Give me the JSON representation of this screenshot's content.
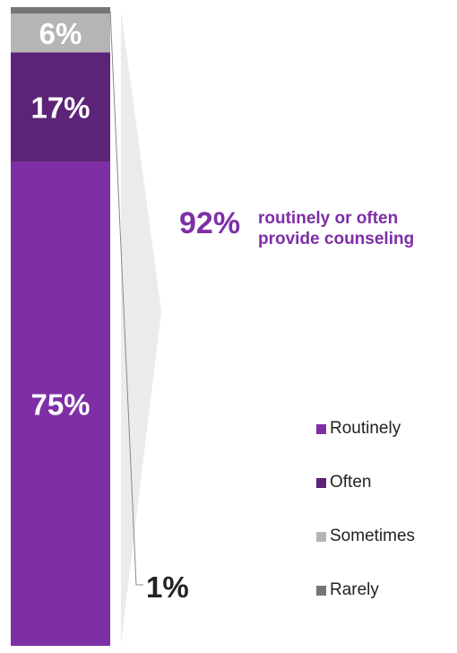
{
  "chart_data": {
    "type": "bar",
    "stacked": true,
    "categories": [
      ""
    ],
    "series": [
      {
        "name": "Routinely",
        "values": [
          75
        ],
        "label": "75%",
        "color": "#7e2fa6"
      },
      {
        "name": "Often",
        "values": [
          17
        ],
        "label": "17%",
        "color": "#5c2378"
      },
      {
        "name": "Sometimes",
        "values": [
          6
        ],
        "label": "6%",
        "color": "#b6b5b6"
      },
      {
        "name": "Rarely",
        "values": [
          1
        ],
        "label": "1%",
        "color": "#767575"
      }
    ],
    "ylim": [
      0,
      100
    ],
    "legend_position": "right",
    "grid": false
  },
  "callout": {
    "percent": "92%",
    "line1": "routinely or often",
    "line2": "provide counseling"
  },
  "legend": [
    {
      "label": "Routinely",
      "color": "#7e2fa6"
    },
    {
      "label": "Often",
      "color": "#5c2378"
    },
    {
      "label": "Sometimes",
      "color": "#b6b5b6"
    },
    {
      "label": "Rarely",
      "color": "#767575"
    }
  ]
}
